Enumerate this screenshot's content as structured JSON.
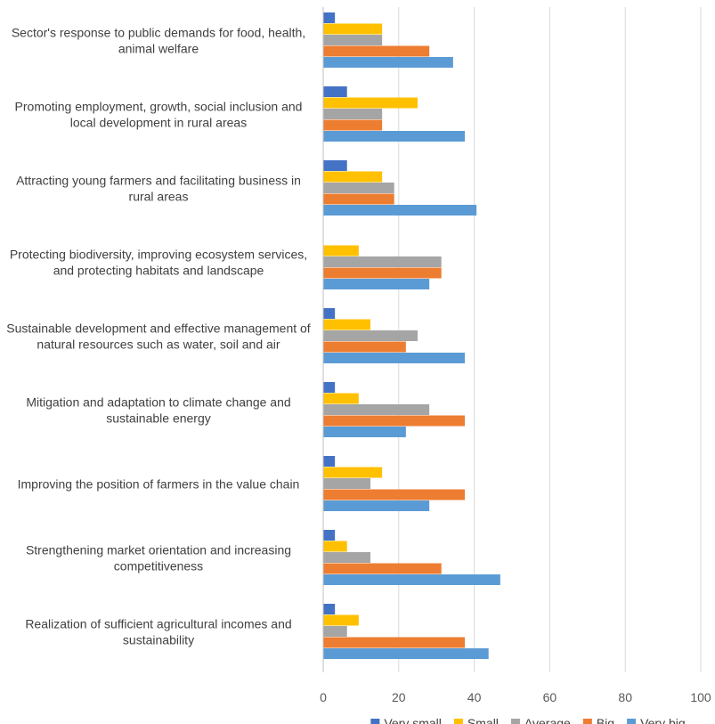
{
  "chart_data": {
    "type": "bar",
    "orientation": "horizontal",
    "title": "",
    "xlabel": "",
    "ylabel": "",
    "xlim": [
      0,
      100
    ],
    "xticks": [
      0,
      20,
      40,
      60,
      80,
      100
    ],
    "grid": "vertical",
    "legend": "bottom",
    "categories": [
      [
        "Sector's response to public demands for food, health,",
        "animal welfare"
      ],
      [
        "Promoting employment, growth, social inclusion and",
        "local development in rural areas"
      ],
      [
        "Attracting young farmers and facilitating business in",
        "rural areas"
      ],
      [
        "Protecting biodiversity, improving ecosystem services,",
        "and protecting habitats and landscape"
      ],
      [
        "Sustainable development and effective management of",
        "natural resources such as water, soil and air"
      ],
      [
        "Mitigation and adaptation to climate change and",
        "sustainable energy"
      ],
      [
        "Improving the position of farmers in the value chain"
      ],
      [
        "Strengthening market orientation and increasing",
        "competitiveness"
      ],
      [
        "Realization of sufficient agricultural incomes and",
        "sustainability"
      ]
    ],
    "series": [
      {
        "name": "Very small",
        "color": "#4472C4",
        "values": [
          3.1,
          6.3,
          6.3,
          0,
          3.1,
          3.1,
          3.1,
          3.1,
          3.1
        ]
      },
      {
        "name": "Small",
        "color": "#FFC000",
        "values": [
          15.6,
          25,
          15.6,
          9.4,
          12.5,
          9.4,
          15.6,
          6.3,
          9.4
        ]
      },
      {
        "name": "Average",
        "color": "#A5A5A5",
        "values": [
          15.6,
          15.6,
          18.8,
          31.3,
          25,
          28.1,
          12.5,
          12.5,
          6.3
        ]
      },
      {
        "name": "Big",
        "color": "#ED7D31",
        "values": [
          28.1,
          15.6,
          18.8,
          31.3,
          21.9,
          37.5,
          37.5,
          31.3,
          37.5
        ]
      },
      {
        "name": "Very big",
        "color": "#5B9BD5",
        "values": [
          34.4,
          37.5,
          40.6,
          28.1,
          37.5,
          21.9,
          28.1,
          46.9,
          43.8
        ]
      }
    ]
  }
}
